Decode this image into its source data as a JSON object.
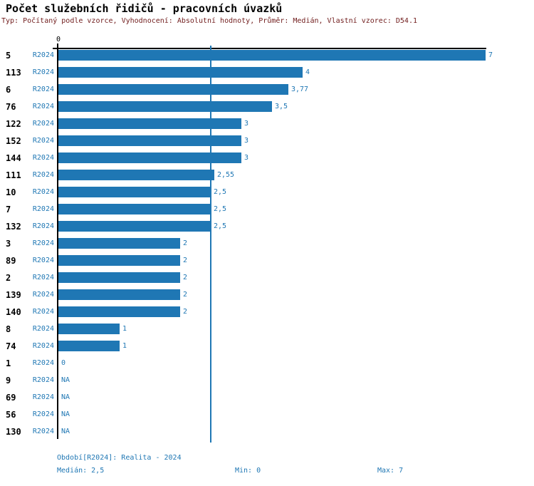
{
  "title": "Počet služebních řidičů - pracovních úvazků",
  "subtitle": "Typ: Počítaný podle vzorce, Vyhodnocení: Absolutní hodnoty, Průměr: Medián, Vlastní vzorec: D54.1",
  "colors": {
    "bar_blue": "#1f77b4",
    "blue_text": "#1f77b4",
    "subtitle_red": "#701c1c",
    "axis_black": "#000000"
  },
  "chart_data": {
    "type": "bar",
    "orientation": "horizontal",
    "title": "Počet služebních řidičů - pracovních úvazků",
    "period_label": "R2024",
    "axis": {
      "tick_label": "0",
      "min": 0,
      "max": 7,
      "median_line": 2.5,
      "grid": false
    },
    "rows": [
      {
        "id": "5",
        "value": 7,
        "label": "7"
      },
      {
        "id": "113",
        "value": 4,
        "label": "4"
      },
      {
        "id": "6",
        "value": 3.77,
        "label": "3,77"
      },
      {
        "id": "76",
        "value": 3.5,
        "label": "3,5"
      },
      {
        "id": "122",
        "value": 3,
        "label": "3"
      },
      {
        "id": "152",
        "value": 3,
        "label": "3"
      },
      {
        "id": "144",
        "value": 3,
        "label": "3"
      },
      {
        "id": "111",
        "value": 2.55,
        "label": "2,55"
      },
      {
        "id": "10",
        "value": 2.5,
        "label": "2,5"
      },
      {
        "id": "7",
        "value": 2.5,
        "label": "2,5"
      },
      {
        "id": "132",
        "value": 2.5,
        "label": "2,5"
      },
      {
        "id": "3",
        "value": 2,
        "label": "2"
      },
      {
        "id": "89",
        "value": 2,
        "label": "2"
      },
      {
        "id": "2",
        "value": 2,
        "label": "2"
      },
      {
        "id": "139",
        "value": 2,
        "label": "2"
      },
      {
        "id": "140",
        "value": 2,
        "label": "2"
      },
      {
        "id": "8",
        "value": 1,
        "label": "1"
      },
      {
        "id": "74",
        "value": 1,
        "label": "1"
      },
      {
        "id": "1",
        "value": 0,
        "label": "0"
      },
      {
        "id": "9",
        "value": null,
        "label": "NA"
      },
      {
        "id": "69",
        "value": null,
        "label": "NA"
      },
      {
        "id": "56",
        "value": null,
        "label": "NA"
      },
      {
        "id": "130",
        "value": null,
        "label": "NA"
      }
    ]
  },
  "footer": {
    "period": "Období[R2024]: Realita - 2024",
    "median": "Medián: 2,5",
    "min": "Min: 0",
    "max": "Max: 7"
  }
}
